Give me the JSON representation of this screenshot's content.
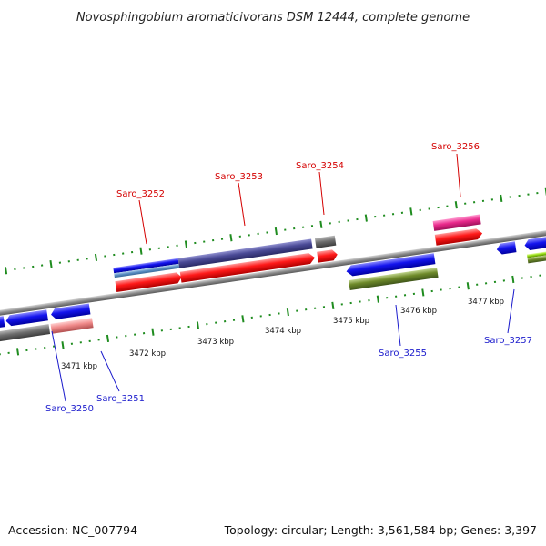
{
  "header": {
    "title": "Novosphingobium aromaticivorans DSM 12444, complete genome"
  },
  "footer": {
    "accession": "Accession: NC_007794",
    "summary": "Topology: circular; Length: 3,561,584 bp; Genes: 3,397"
  },
  "scale": {
    "labels": [
      "3471 kbp",
      "3472 kbp",
      "3473 kbp",
      "3474 kbp",
      "3475 kbp",
      "3476 kbp",
      "3477 kbp"
    ]
  },
  "genes": {
    "forward": [
      {
        "id": "Saro_3252",
        "label": "Saro_3252"
      },
      {
        "id": "Saro_3253",
        "label": "Saro_3253"
      },
      {
        "id": "Saro_3254",
        "label": "Saro_3254"
      },
      {
        "id": "Saro_3256",
        "label": "Saro_3256"
      }
    ],
    "reverse": [
      {
        "id": "Saro_3250",
        "label": "Saro_3250"
      },
      {
        "id": "Saro_3251",
        "label": "Saro_3251"
      },
      {
        "id": "Saro_3255",
        "label": "Saro_3255"
      },
      {
        "id": "Saro_3257",
        "label": "Saro_3257"
      }
    ]
  },
  "colors": {
    "forward_label": "#d40000",
    "reverse_label": "#1a1acc",
    "cds": "#ff0000",
    "cds_reverse": "#1010ee",
    "backbone": "#8a8a8a",
    "tick": "#1f8c1f"
  }
}
